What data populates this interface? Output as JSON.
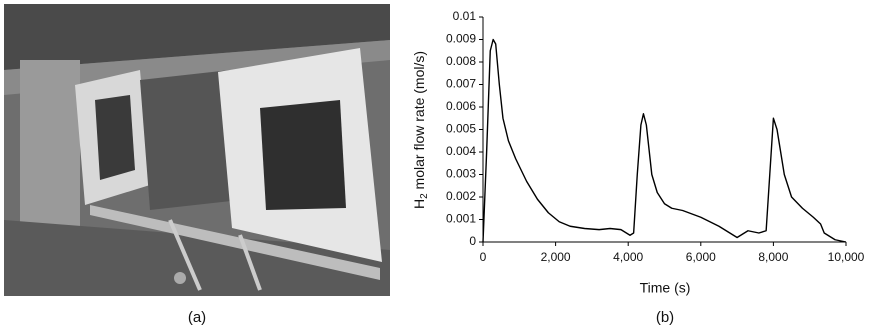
{
  "chart_data": {
    "type": "line",
    "ylabel": [
      "H",
      "2",
      " molar flow rate (mol/s)"
    ],
    "xlabel": "Time (s)",
    "color": "#000000",
    "x": [
      0,
      100,
      200,
      280,
      350,
      450,
      550,
      700,
      900,
      1200,
      1500,
      1800,
      2100,
      2400,
      2800,
      3200,
      3500,
      3800,
      4050,
      4150,
      4250,
      4350,
      4420,
      4500,
      4650,
      4800,
      5000,
      5200,
      5500,
      6000,
      6500,
      7000,
      7300,
      7600,
      7800,
      7900,
      8000,
      8100,
      8300,
      8500,
      8800,
      9100,
      9300,
      9400,
      9700,
      10000
    ],
    "values": [
      0,
      0.004,
      0.0085,
      0.009,
      0.0088,
      0.007,
      0.0055,
      0.0045,
      0.0037,
      0.0027,
      0.0019,
      0.0013,
      0.0009,
      0.0007,
      0.0006,
      0.00055,
      0.0006,
      0.00055,
      0.0003,
      0.0004,
      0.003,
      0.0052,
      0.0057,
      0.0052,
      0.003,
      0.0022,
      0.0017,
      0.0015,
      0.0014,
      0.0011,
      0.0007,
      0.0002,
      0.0005,
      0.0004,
      0.0005,
      0.003,
      0.0055,
      0.005,
      0.003,
      0.002,
      0.0015,
      0.0011,
      0.0008,
      0.0004,
      0.0001,
      0
    ],
    "xlim": [
      0,
      10000
    ],
    "xticks": [
      0,
      {
        "value": 2000,
        "label": "2,000"
      },
      {
        "value": 4000,
        "label": "4,000"
      },
      {
        "value": 6000,
        "label": "6,000"
      },
      {
        "value": 8000,
        "label": "8,000"
      },
      {
        "value": 10000,
        "label": "10,000"
      }
    ],
    "ylim": [
      0,
      0.01
    ],
    "yticks": [
      0,
      0.001,
      0.002,
      0.003,
      0.004,
      0.005,
      0.006,
      0.007,
      0.008,
      0.009,
      0.01
    ],
    "grid": false
  },
  "captions": [
    "(a)",
    "(b)"
  ]
}
